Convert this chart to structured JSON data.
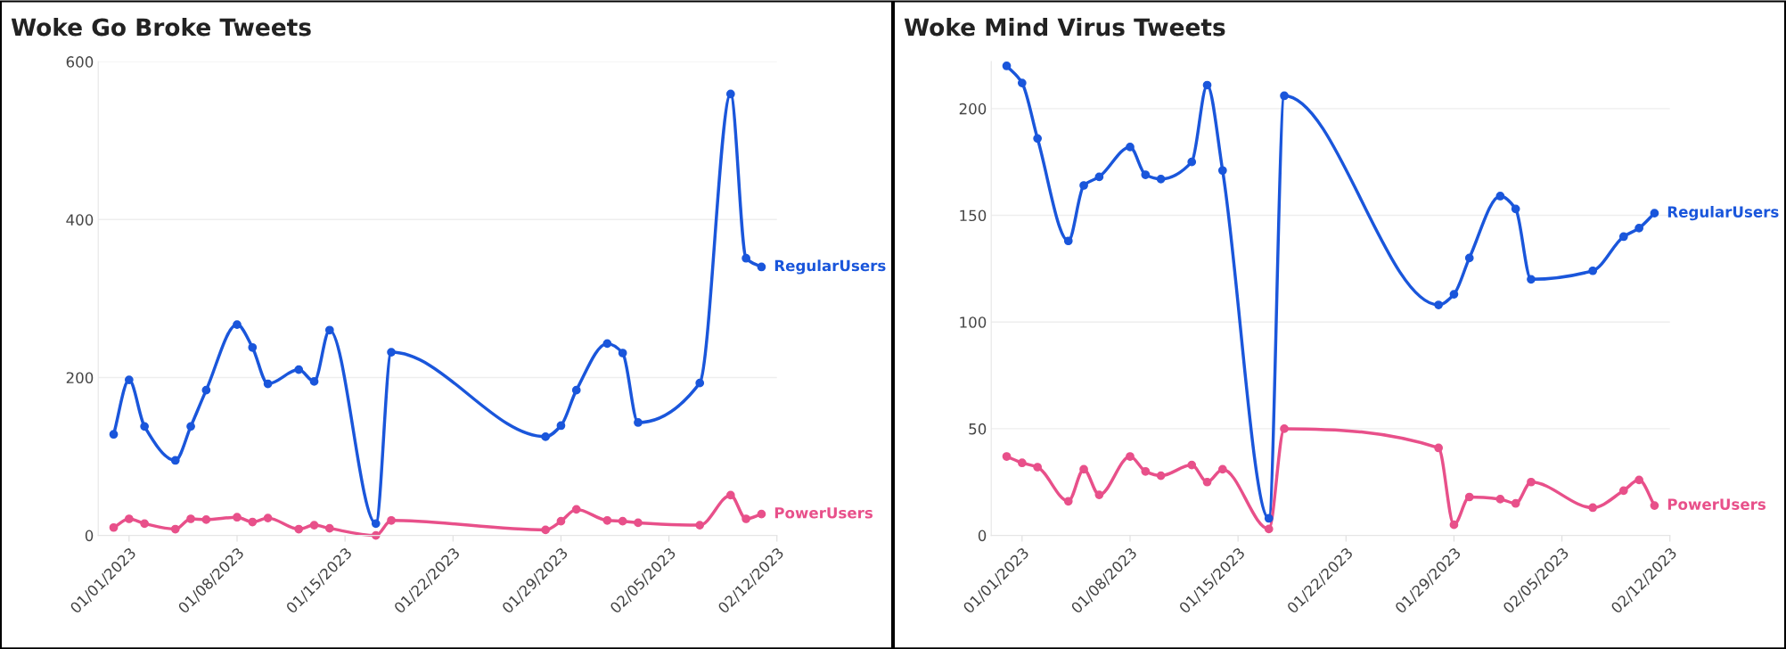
{
  "chart_data": [
    {
      "type": "line",
      "title": "Woke Go Broke Tweets",
      "x": [
        "2022-12-31",
        "2023-01-01",
        "2023-01-02",
        "2023-01-04",
        "2023-01-05",
        "2023-01-06",
        "2023-01-08",
        "2023-01-09",
        "2023-01-10",
        "2023-01-12",
        "2023-01-13",
        "2023-01-14",
        "2023-01-17",
        "2023-01-18",
        "2023-01-28",
        "2023-01-29",
        "2023-01-30",
        "2023-02-01",
        "2023-02-02",
        "2023-02-03",
        "2023-02-07",
        "2023-02-09",
        "2023-02-10",
        "2023-02-11"
      ],
      "series": [
        {
          "name": "RegularUsers",
          "color": "#1a56db",
          "values": [
            128,
            197,
            138,
            95,
            138,
            184,
            267,
            238,
            192,
            210,
            195,
            260,
            15,
            232,
            125,
            139,
            184,
            243,
            231,
            143,
            193,
            559,
            351,
            340
          ]
        },
        {
          "name": "PowerUsers",
          "color": "#e8508a",
          "values": [
            10,
            21,
            15,
            8,
            21,
            20,
            23,
            17,
            22,
            8,
            13,
            9,
            0,
            19,
            7,
            18,
            33,
            19,
            18,
            16,
            13,
            51,
            21,
            27
          ]
        }
      ],
      "xlim": [
        "2022-12-30",
        "2023-02-12"
      ],
      "xticks": [
        {
          "value": "2023-01-01",
          "label": "01/01/2023"
        },
        {
          "value": "2023-01-08",
          "label": "01/08/2023"
        },
        {
          "value": "2023-01-15",
          "label": "01/15/2023"
        },
        {
          "value": "2023-01-22",
          "label": "01/22/2023"
        },
        {
          "value": "2023-01-29",
          "label": "01/29/2023"
        },
        {
          "value": "2023-02-05",
          "label": "02/05/2023"
        },
        {
          "value": "2023-02-12",
          "label": "02/12/2023"
        }
      ],
      "ylim": [
        0,
        600
      ],
      "yticks": [
        0,
        200,
        400,
        600
      ],
      "grid": "y",
      "legend": false,
      "marker": "circle",
      "line_style": "solid"
    },
    {
      "type": "line",
      "title": "Woke Mind Virus Tweets",
      "x": [
        "2022-12-31",
        "2023-01-01",
        "2023-01-02",
        "2023-01-04",
        "2023-01-05",
        "2023-01-06",
        "2023-01-08",
        "2023-01-09",
        "2023-01-10",
        "2023-01-12",
        "2023-01-13",
        "2023-01-14",
        "2023-01-17",
        "2023-01-18",
        "2023-01-28",
        "2023-01-29",
        "2023-01-30",
        "2023-02-01",
        "2023-02-02",
        "2023-02-03",
        "2023-02-07",
        "2023-02-09",
        "2023-02-10",
        "2023-02-11"
      ],
      "series": [
        {
          "name": "RegularUsers",
          "color": "#1a56db",
          "values": [
            220,
            212,
            186,
            138,
            164,
            168,
            182,
            169,
            167,
            175,
            211,
            171,
            8,
            206,
            108,
            113,
            130,
            159,
            153,
            120,
            124,
            140,
            144,
            151
          ]
        },
        {
          "name": "PowerUsers",
          "color": "#e8508a",
          "values": [
            37,
            34,
            32,
            16,
            31,
            19,
            37,
            30,
            28,
            33,
            25,
            31,
            3,
            50,
            41,
            5,
            18,
            17,
            15,
            25,
            13,
            21,
            26,
            14
          ]
        }
      ],
      "xlim": [
        "2022-12-30",
        "2023-02-12"
      ],
      "xticks": [
        {
          "value": "2023-01-01",
          "label": "01/01/2023"
        },
        {
          "value": "2023-01-08",
          "label": "01/08/2023"
        },
        {
          "value": "2023-01-15",
          "label": "01/15/2023"
        },
        {
          "value": "2023-01-22",
          "label": "01/22/2023"
        },
        {
          "value": "2023-01-29",
          "label": "01/29/2023"
        },
        {
          "value": "2023-02-05",
          "label": "02/05/2023"
        },
        {
          "value": "2023-02-12",
          "label": "02/12/2023"
        }
      ],
      "ylim": [
        0,
        222
      ],
      "yticks": [
        0,
        50,
        100,
        150,
        200
      ],
      "grid": "y",
      "legend": false,
      "marker": "circle",
      "line_style": "solid"
    }
  ]
}
